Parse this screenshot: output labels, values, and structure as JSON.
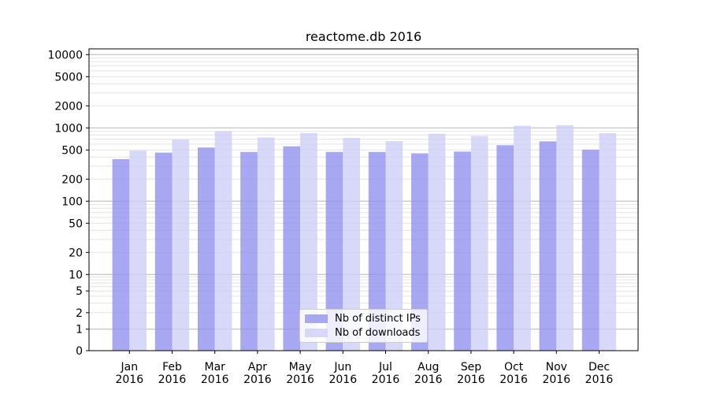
{
  "chart_data": {
    "type": "bar",
    "title": "reactome.db 2016",
    "x_tick_year": "2016",
    "categories": [
      "Jan",
      "Feb",
      "Mar",
      "Apr",
      "May",
      "Jun",
      "Jul",
      "Aug",
      "Sep",
      "Oct",
      "Nov",
      "Dec"
    ],
    "series": [
      {
        "name": "Nb of distinct IPs",
        "color": "#9292ef",
        "values": [
          375,
          460,
          540,
          470,
          560,
          470,
          470,
          450,
          475,
          580,
          655,
          505
        ]
      },
      {
        "name": "Nb of downloads",
        "color": "#cecef6",
        "values": [
          490,
          695,
          900,
          740,
          850,
          730,
          660,
          830,
          775,
          1070,
          1090,
          845
        ]
      }
    ],
    "y_ticks": [
      0,
      1,
      2,
      5,
      10,
      20,
      50,
      100,
      200,
      500,
      1000,
      2000,
      5000,
      10000
    ],
    "y_scale": "symlog",
    "ylim": [
      0,
      10000
    ],
    "xlabel": "",
    "ylabel": "",
    "grid": "horizontal, log minor lines, darker decade lines",
    "legend_position": "lower-center-inside",
    "colors": {
      "bar_distinct_ips": "#9292ef",
      "bar_downloads": "#cecef6",
      "bar_alpha": 0.8,
      "gridline_major": "#b5b5b5",
      "gridline_minor": "#e4e4e4",
      "axis": "#000000",
      "legend_border": "#cccccc",
      "background": "#ffffff"
    }
  }
}
